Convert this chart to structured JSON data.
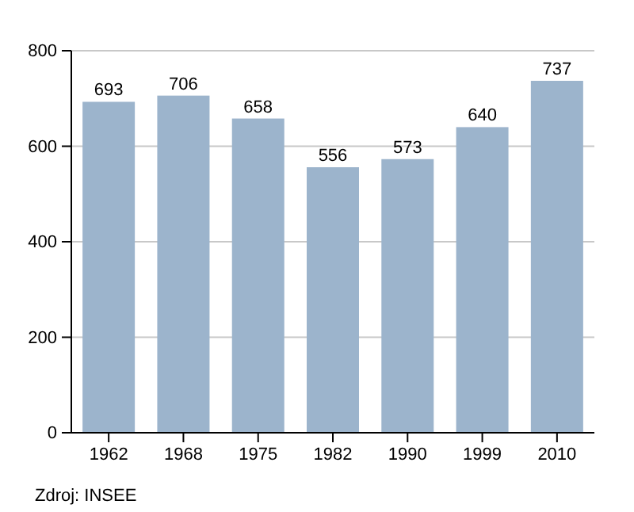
{
  "chart_data": {
    "type": "bar",
    "categories": [
      "1962",
      "1968",
      "1975",
      "1982",
      "1990",
      "1999",
      "2010"
    ],
    "values": [
      693,
      706,
      658,
      556,
      573,
      640,
      737
    ],
    "color": "#9cb4cc",
    "ylim": [
      0,
      800
    ],
    "yticks": [
      0,
      200,
      400,
      600,
      800
    ],
    "grid": "y",
    "data_labels": true,
    "annotations": [
      "Zdroj: INSEE"
    ]
  }
}
